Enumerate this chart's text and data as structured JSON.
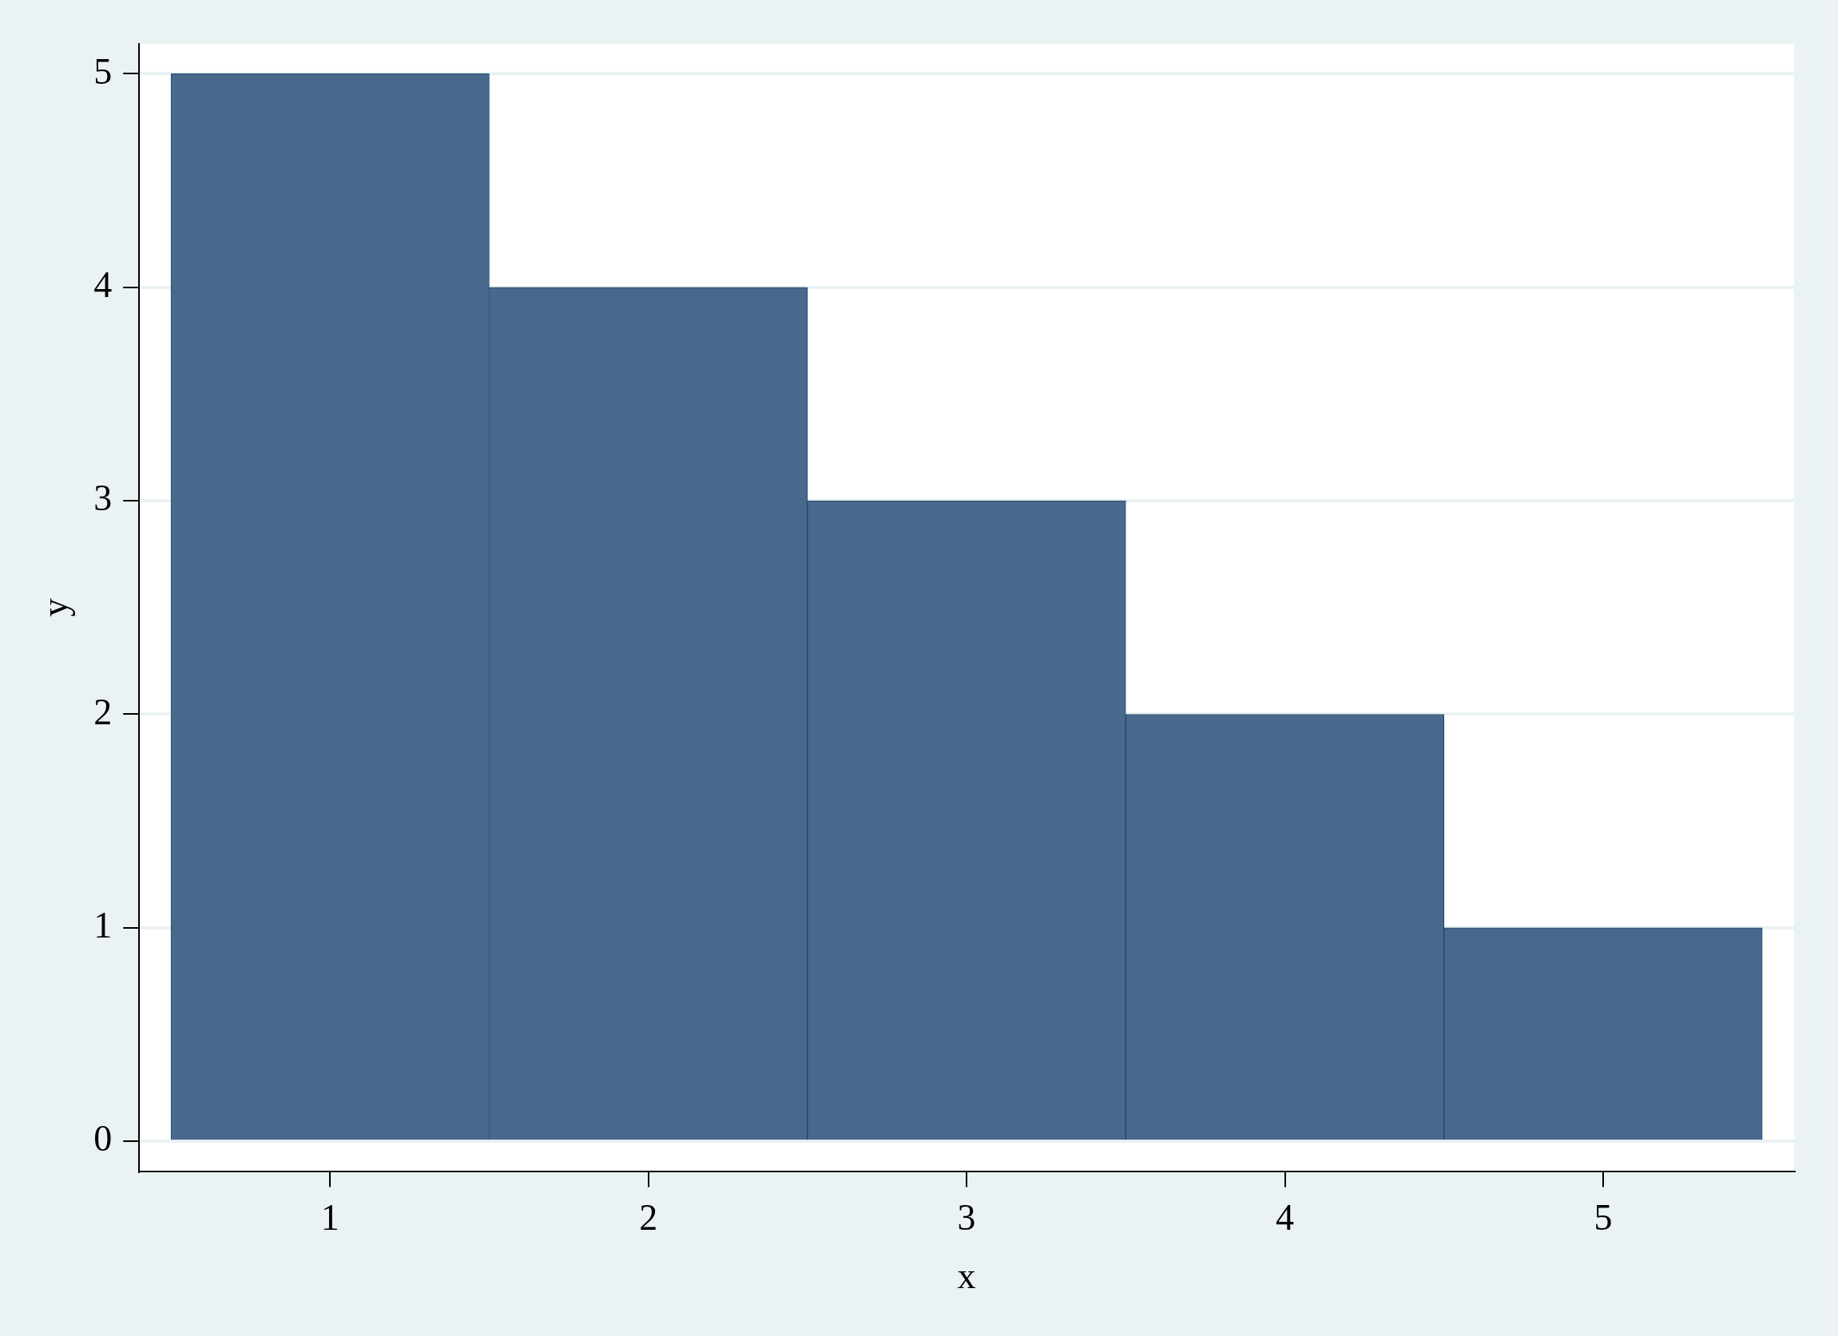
{
  "chart_data": {
    "type": "histogram",
    "xlabel": "x",
    "ylabel": "y",
    "bins": [
      0.5,
      1.5,
      2.5,
      3.5,
      4.5,
      5.5
    ],
    "values": [
      5,
      4,
      3,
      2,
      1
    ],
    "color": "#48698c",
    "xlim": [
      0.4,
      5.6
    ],
    "ylim": [
      -0.14,
      5.14
    ],
    "xticks": [
      1,
      2,
      3,
      4,
      5
    ],
    "yticks": [
      0,
      1,
      2,
      3,
      4,
      5
    ],
    "grid": "y"
  }
}
